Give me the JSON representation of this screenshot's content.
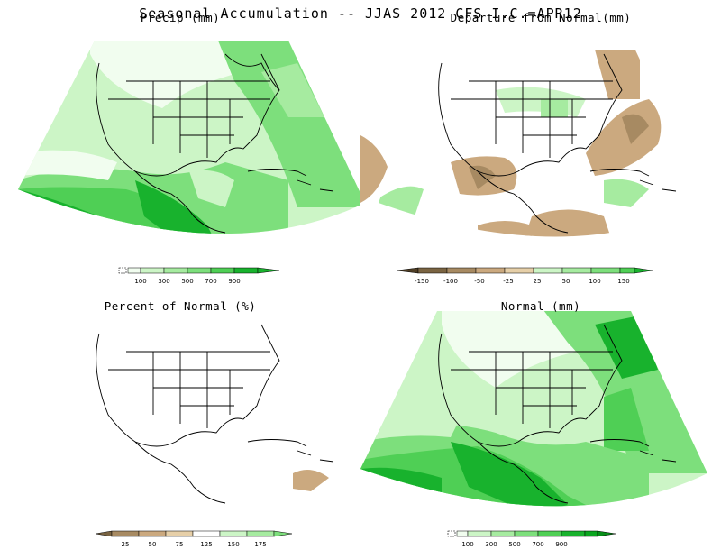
{
  "title": "Seasonal Accumulation -- JJAS 2012 CFS I.C.=APR12",
  "colors": {
    "land_line": "#000000",
    "green_1": "#f1fdef",
    "green_2": "#ccf5c6",
    "green_3": "#a6eba0",
    "green_4": "#7ddf7c",
    "green_5": "#4fcf55",
    "green_6": "#18b22d",
    "brown_1": "#e6cfa8",
    "brown_2": "#cba97f",
    "brown_3": "#a78a62",
    "brown_4": "#7a6442"
  },
  "panels": [
    {
      "id": "precip",
      "title": "Precip (mm)",
      "legend": {
        "labels": [
          "100",
          "300",
          "500",
          "700",
          "900"
        ],
        "has_blank_swatch": true
      }
    },
    {
      "id": "departure",
      "title": "Departure from Normal(mm)",
      "legend": {
        "labels": [
          "-150",
          "-100",
          "-50",
          "-25",
          "25",
          "50",
          "100",
          "150"
        ],
        "has_blank_swatch": false
      }
    },
    {
      "id": "percent",
      "title": "Percent of Normal (%)",
      "legend": {
        "labels": [
          "25",
          "50",
          "75",
          "125",
          "150",
          "175"
        ],
        "has_blank_swatch": false
      }
    },
    {
      "id": "normal",
      "title": "Normal (mm)",
      "legend": {
        "labels": [
          "100",
          "300",
          "500",
          "700",
          "900"
        ],
        "has_blank_swatch": true
      }
    }
  ]
}
